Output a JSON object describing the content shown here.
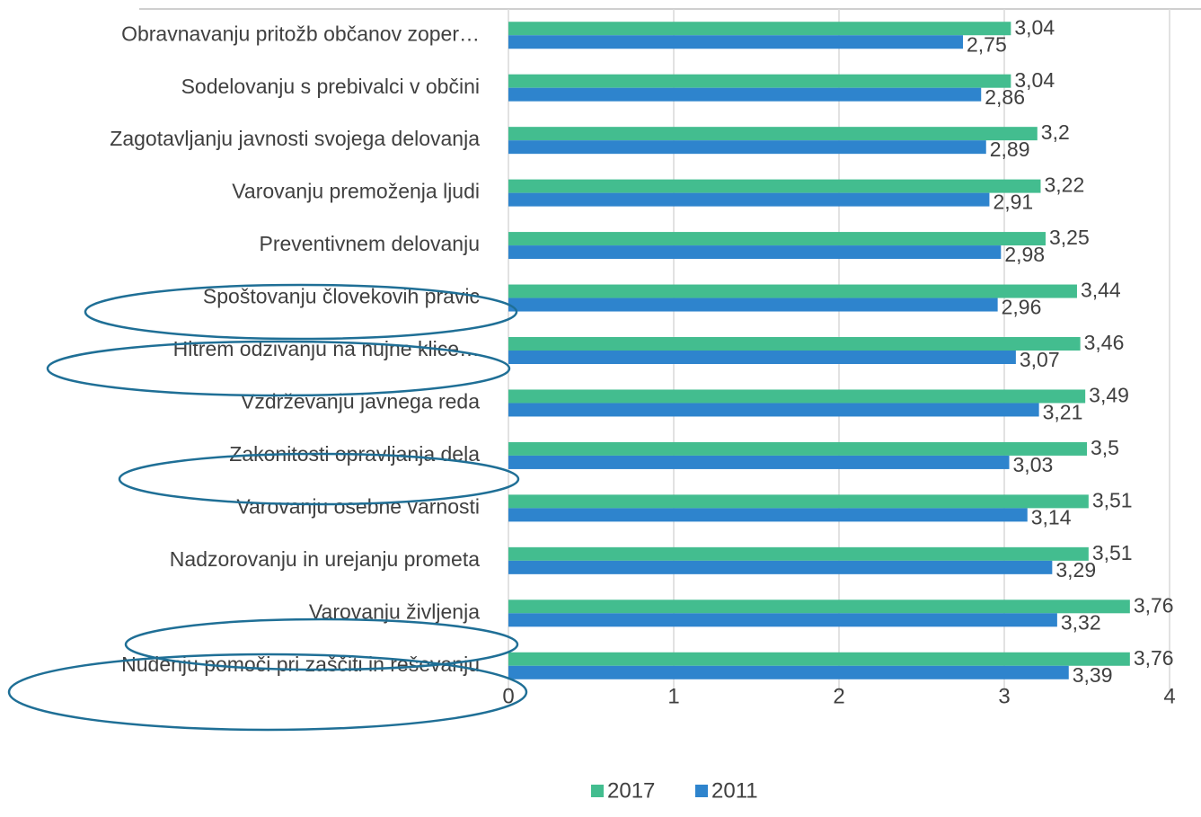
{
  "chart_data": {
    "type": "bar",
    "orientation": "horizontal",
    "categories": [
      "Obravnavanju pritožb občanov zoper…",
      "Sodelovanju s prebivalci v občini",
      "Zagotavljanju javnosti svojega delovanja",
      "Varovanju premoženja ljudi",
      "Preventivnem delovanju",
      "Spoštovanju človekovih pravic",
      "Hitrem odzivanju na nujne klice…",
      "Vzdrževanju javnega reda",
      "Zakonitosti opravljanja dela",
      "Varovanju osebne varnosti",
      "Nadzorovanju in urejanju prometa",
      "Varovanju življenja",
      "Nudenju pomoči pri zaščiti in reševanju"
    ],
    "series": [
      {
        "name": "2017",
        "color": "#43bd8f",
        "values": [
          3.04,
          3.04,
          3.2,
          3.22,
          3.25,
          3.44,
          3.46,
          3.49,
          3.5,
          3.51,
          3.51,
          3.76,
          3.76
        ],
        "value_labels": [
          "3,04",
          "3,04",
          "3,2",
          "3,22",
          "3,25",
          "3,44",
          "3,46",
          "3,49",
          "3,5",
          "3,51",
          "3,51",
          "3,76",
          "3,76"
        ]
      },
      {
        "name": "2011",
        "color": "#2e84cd",
        "values": [
          2.75,
          2.86,
          2.89,
          2.91,
          2.98,
          2.96,
          3.07,
          3.21,
          3.03,
          3.14,
          3.29,
          3.32,
          3.39
        ],
        "value_labels": [
          "2,75",
          "2,86",
          "2,89",
          "2,91",
          "2,98",
          "2,96",
          "3,07",
          "3,21",
          "3,03",
          "3,14",
          "3,29",
          "3,32",
          "3,39"
        ]
      }
    ],
    "xlim": [
      0,
      4
    ],
    "xticks": [
      0,
      1,
      2,
      3,
      4
    ],
    "grid": true,
    "legend": "bottom"
  }
}
